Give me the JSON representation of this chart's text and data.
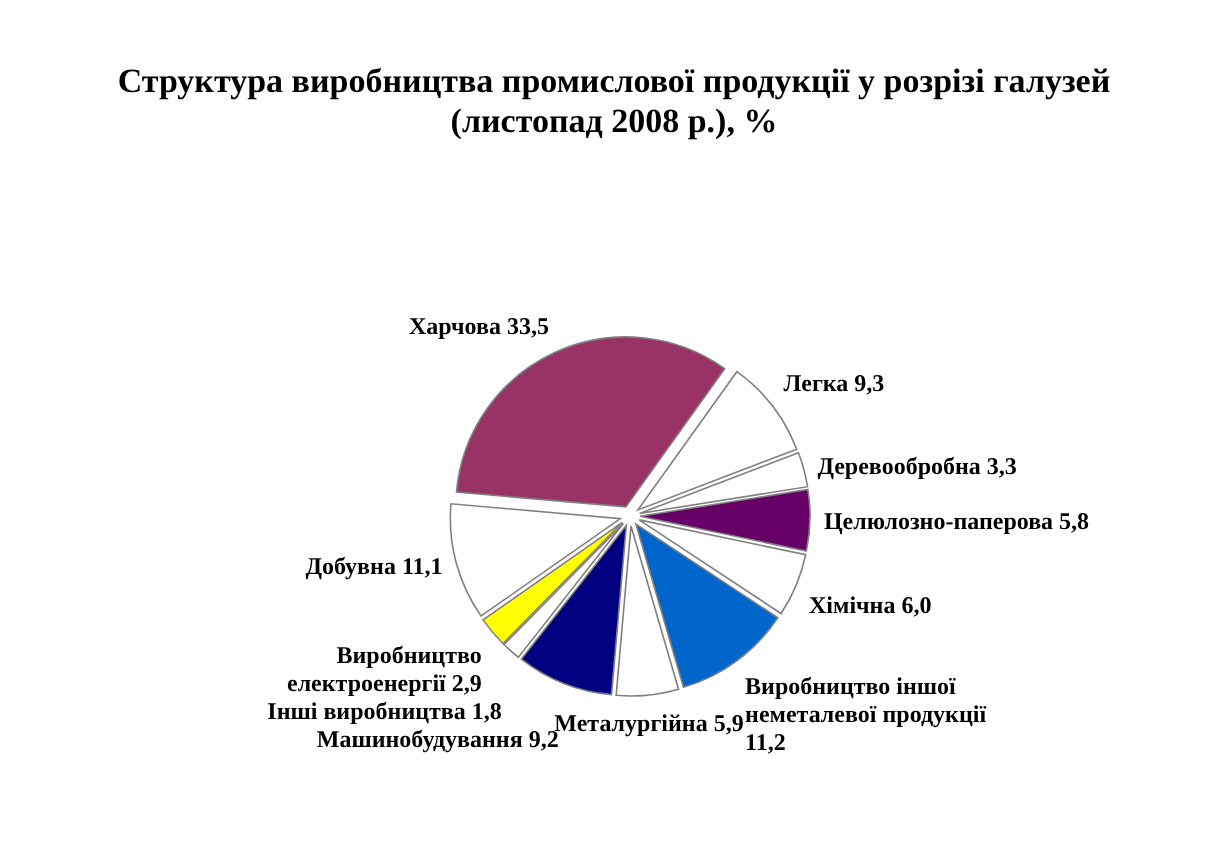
{
  "chart_data": {
    "type": "pie",
    "title": "Структура виробництва промислової продукції у розрізі галузей (листопад 2008 р.), %",
    "categories": [
      "Харчова",
      "Легка",
      "Деревообробна",
      "Целюлозно-паперова",
      "Хімічна",
      "Виробництво іншої неметалевої продукції",
      "Металургійна",
      "Машинобудування",
      "Інші виробництва",
      "Виробництво електроенергії",
      "Добувна"
    ],
    "values": [
      33.5,
      9.3,
      3.3,
      5.8,
      6.0,
      11.2,
      5.9,
      9.2,
      1.8,
      2.9,
      11.1
    ],
    "value_labels": [
      "33,5",
      "9,3",
      "3,3",
      "5,8",
      "6,0",
      "11,2",
      "5,9",
      "9,2",
      "1,8",
      "2,9",
      "11,1"
    ],
    "colors": [
      "#993366",
      "#ffffff",
      "#ffffff",
      "#660066",
      "#ffffff",
      "#0066cc",
      "#ffffff",
      "#000080",
      "#ffffff",
      "#ffff00",
      "#ffffff"
    ]
  }
}
